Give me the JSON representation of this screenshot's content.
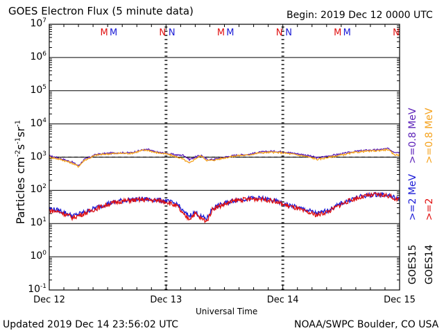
{
  "header": {
    "title": "GOES Electron Flux (5 minute data)",
    "begin": "Begin: 2019 Dec 12 0000 UTC"
  },
  "footer": {
    "updated": "Updated 2019 Dec 14 23:56:02 UTC",
    "credit": "NOAA/SWPC Boulder, CO USA"
  },
  "colors": {
    "goes15_high": "#5a1fb8",
    "goes14_high": "#f5a21c",
    "goes15_low": "#1a1ad6",
    "goes14_low": "#e01010",
    "threshold": "#000000"
  },
  "chart_data": {
    "type": "line",
    "title": "GOES Electron Flux (5 minute data)",
    "xlabel": "Universal Time",
    "ylabel": "Particles cm-2s-1sr-1",
    "y_scale": "log",
    "ylim": [
      0.1,
      10000000
    ],
    "y_ticks": [
      {
        "base": "10",
        "exp": "7"
      },
      {
        "base": "10",
        "exp": "6"
      },
      {
        "base": "10",
        "exp": "5"
      },
      {
        "base": "10",
        "exp": "4"
      },
      {
        "base": "10",
        "exp": "3"
      },
      {
        "base": "10",
        "exp": "2"
      },
      {
        "base": "10",
        "exp": "1"
      },
      {
        "base": "10",
        "exp": "0"
      },
      {
        "base": "10",
        "exp": "-1"
      }
    ],
    "x_ticks": [
      "Dec 12",
      "Dec 13",
      "Dec 14",
      "Dec 15"
    ],
    "x_range_days": [
      0,
      3
    ],
    "grid": "horizontal at each decade",
    "threshold_line": 1000,
    "markers": [
      {
        "label": "M",
        "day": 0.47,
        "color": "#e01010"
      },
      {
        "label": "M",
        "day": 0.55,
        "color": "#1a1ad6"
      },
      {
        "label": "N",
        "day": 0.97,
        "color": "#e01010"
      },
      {
        "label": "N",
        "day": 1.05,
        "color": "#1a1ad6"
      },
      {
        "label": "M",
        "day": 1.47,
        "color": "#e01010"
      },
      {
        "label": "M",
        "day": 1.55,
        "color": "#1a1ad6"
      },
      {
        "label": "N",
        "day": 1.97,
        "color": "#e01010"
      },
      {
        "label": "N",
        "day": 2.05,
        "color": "#1a1ad6"
      },
      {
        "label": "M",
        "day": 2.47,
        "color": "#e01010"
      },
      {
        "label": "M",
        "day": 2.55,
        "color": "#1a1ad6"
      },
      {
        "label": "N",
        "day": 2.97,
        "color": "#e01010"
      },
      {
        "label": "N",
        "day": 3.05,
        "color": "#1a1ad6"
      }
    ],
    "legend": {
      "high_label_15": ">=0.8 MeV",
      "high_label_14": ">=0.8 MeV",
      "low_label_15": ">=2 MeV",
      "low_label_14": ">=2",
      "sat_15": "GOES15",
      "sat_14": "GOES14"
    },
    "series": [
      {
        "name": ">=0.8 MeV",
        "satellite": "GOES15",
        "color": "#5a1fb8",
        "x": [
          0,
          0.1,
          0.2,
          0.25,
          0.3,
          0.4,
          0.5,
          0.6,
          0.7,
          0.8,
          0.85,
          0.9,
          1.0,
          1.1,
          1.15,
          1.2,
          1.25,
          1.3,
          1.35,
          1.4,
          1.5,
          1.6,
          1.7,
          1.8,
          1.9,
          2.0,
          2.1,
          2.2,
          2.3,
          2.4,
          2.5,
          2.6,
          2.7,
          2.8,
          2.9,
          2.95,
          3.0
        ],
        "y": [
          1100,
          900,
          700,
          550,
          850,
          1200,
          1300,
          1350,
          1350,
          1650,
          1700,
          1450,
          1300,
          1150,
          1150,
          850,
          1000,
          1150,
          850,
          850,
          1000,
          1150,
          1200,
          1400,
          1500,
          1450,
          1300,
          1150,
          950,
          1100,
          1250,
          1450,
          1600,
          1650,
          1800,
          1450,
          1400
        ]
      },
      {
        "name": ">=0.8 MeV",
        "satellite": "GOES14",
        "color": "#f5a21c",
        "x": [
          0,
          0.1,
          0.2,
          0.25,
          0.3,
          0.4,
          0.5,
          0.6,
          0.7,
          0.8,
          0.85,
          0.9,
          1.0,
          1.1,
          1.15,
          1.2,
          1.25,
          1.3,
          1.35,
          1.4,
          1.5,
          1.6,
          1.7,
          1.8,
          1.9,
          2.0,
          2.1,
          2.2,
          2.3,
          2.4,
          2.5,
          2.6,
          2.7,
          2.8,
          2.9,
          2.95,
          3.0
        ],
        "y": [
          1000,
          850,
          650,
          520,
          800,
          1150,
          1250,
          1300,
          1300,
          1600,
          1600,
          1400,
          1250,
          1000,
          850,
          650,
          900,
          1100,
          800,
          800,
          950,
          1100,
          1150,
          1350,
          1400,
          1350,
          1200,
          1050,
          850,
          1000,
          1150,
          1350,
          1500,
          1550,
          1700,
          1200,
          1150
        ]
      },
      {
        "name": ">=2 MeV",
        "satellite": "GOES15",
        "color": "#1a1ad6",
        "x": [
          0,
          0.1,
          0.2,
          0.3,
          0.4,
          0.5,
          0.6,
          0.7,
          0.8,
          0.9,
          1.0,
          1.1,
          1.15,
          1.2,
          1.25,
          1.3,
          1.35,
          1.4,
          1.5,
          1.6,
          1.7,
          1.8,
          1.9,
          2.0,
          2.1,
          2.2,
          2.3,
          2.4,
          2.5,
          2.6,
          2.7,
          2.8,
          2.9,
          3.0
        ],
        "y": [
          28,
          24,
          17,
          22,
          30,
          40,
          48,
          52,
          55,
          52,
          48,
          38,
          22,
          17,
          22,
          16,
          14,
          30,
          40,
          52,
          56,
          58,
          52,
          40,
          32,
          26,
          20,
          26,
          40,
          56,
          68,
          76,
          72,
          52
        ]
      },
      {
        "name": ">=2 MeV",
        "satellite": "GOES14",
        "color": "#e01010",
        "x": [
          0,
          0.1,
          0.2,
          0.3,
          0.4,
          0.5,
          0.6,
          0.7,
          0.8,
          0.9,
          1.0,
          1.1,
          1.15,
          1.2,
          1.25,
          1.3,
          1.35,
          1.4,
          1.5,
          1.6,
          1.7,
          1.8,
          1.9,
          2.0,
          2.1,
          2.2,
          2.3,
          2.4,
          2.5,
          2.6,
          2.7,
          2.8,
          2.9,
          3.0
        ],
        "y": [
          25,
          22,
          15,
          20,
          28,
          38,
          46,
          50,
          52,
          50,
          46,
          32,
          18,
          14,
          20,
          14,
          12,
          28,
          38,
          50,
          54,
          56,
          50,
          38,
          30,
          22,
          18,
          24,
          38,
          54,
          66,
          74,
          70,
          50
        ]
      }
    ]
  }
}
